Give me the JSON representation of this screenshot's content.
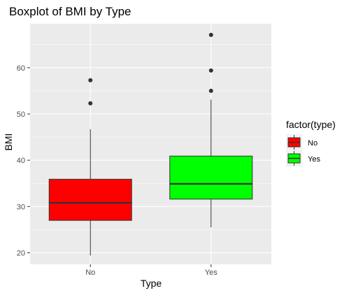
{
  "chart_data": {
    "type": "boxplot",
    "title": "Boxplot of BMI by Type",
    "xlabel": "Type",
    "ylabel": "BMI",
    "categories": [
      "No",
      "Yes"
    ],
    "ylim": [
      17.5,
      69.5
    ],
    "yticks": [
      20,
      30,
      40,
      50,
      60
    ],
    "ytick_labels": [
      "20",
      "30",
      "40",
      "50",
      "60"
    ],
    "grid": true,
    "legend_position": "right",
    "legend": {
      "title": "factor(type)",
      "entries": [
        {
          "label": "No",
          "color": "#ff0000"
        },
        {
          "label": "Yes",
          "color": "#00ff00"
        }
      ]
    },
    "boxes": [
      {
        "category": "No",
        "fill": "#ff0000",
        "whisker_low": 19.4,
        "q1": 27.0,
        "median": 30.8,
        "q3": 35.9,
        "whisker_high": 46.7,
        "outliers": [
          52.3,
          57.3
        ]
      },
      {
        "category": "Yes",
        "fill": "#00ff00",
        "whisker_low": 25.5,
        "q1": 31.6,
        "median": 34.9,
        "q3": 40.9,
        "whisker_high": 53.1,
        "outliers": [
          55.0,
          59.4,
          67.1
        ]
      }
    ],
    "colors": {
      "panel_background": "#ebebeb",
      "grid_line": "#ffffff",
      "box_outline": "#333333",
      "outlier": "#333333",
      "tick_text": "#4d4d4d"
    }
  }
}
